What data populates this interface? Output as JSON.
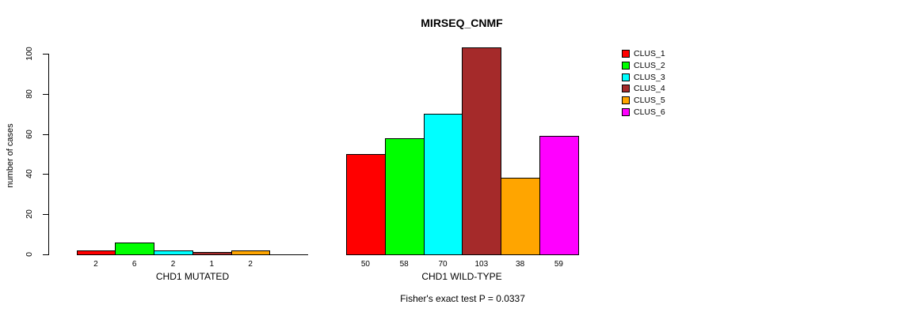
{
  "chart_data": {
    "type": "bar",
    "title": "MIRSEQ_CNMF",
    "ylabel": "number of cases",
    "ylim": [
      0,
      100
    ],
    "yticks": [
      0,
      20,
      40,
      60,
      80,
      100
    ],
    "grid": false,
    "legend_position": "right-outside",
    "categories": [
      "CHD1 MUTATED",
      "CHD1 WILD-TYPE"
    ],
    "series": [
      {
        "name": "CLUS_1",
        "color": "#FF0000",
        "values": [
          2,
          50
        ]
      },
      {
        "name": "CLUS_2",
        "color": "#00FF00",
        "values": [
          6,
          58
        ]
      },
      {
        "name": "CLUS_3",
        "color": "#00FFFF",
        "values": [
          2,
          70
        ]
      },
      {
        "name": "CLUS_4",
        "color": "#A52A2A",
        "values": [
          1,
          103
        ]
      },
      {
        "name": "CLUS_5",
        "color": "#FFA500",
        "values": [
          2,
          38
        ]
      },
      {
        "name": "CLUS_6",
        "color": "#FF00FF",
        "values": [
          0,
          59
        ]
      }
    ],
    "bar_labels": [
      [
        "2",
        "6",
        "2",
        "1",
        "2",
        ""
      ],
      [
        "50",
        "58",
        "70",
        "103",
        "38",
        "59"
      ]
    ],
    "annotation": "Fisher's exact test P = 0.0337"
  }
}
